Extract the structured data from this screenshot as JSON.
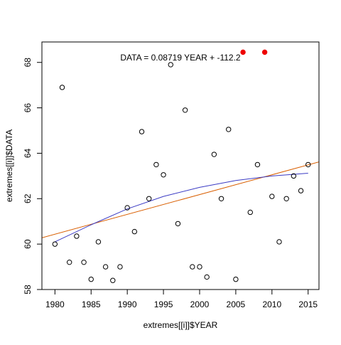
{
  "chart_data": {
    "type": "scatter",
    "title": "",
    "xlabel": "extremes[[i]]$YEAR",
    "ylabel": "extremes[[i]]$DATA",
    "xlim": [
      1978.2,
      2016.5
    ],
    "ylim": [
      58.0,
      68.9
    ],
    "x_ticks": [
      1980,
      1985,
      1990,
      1995,
      2000,
      2005,
      2010,
      2015
    ],
    "y_ticks": [
      58,
      60,
      62,
      64,
      66,
      68
    ],
    "grid": false,
    "legend": "none",
    "annotation": "DATA = 0.08719 YEAR + -112.2",
    "series": [
      {
        "style": "open-circle",
        "x": [
          1980,
          1981,
          1982,
          1983,
          1984,
          1985,
          1986,
          1987,
          1988,
          1989,
          1990,
          1991,
          1992,
          1993,
          1994,
          1995,
          1996,
          1997,
          1998,
          1999,
          2000,
          2001,
          2002,
          2003,
          2004,
          2005,
          2007,
          2008,
          2010,
          2011,
          2012,
          2013,
          2014,
          2015
        ],
        "y": [
          60.0,
          66.9,
          59.2,
          60.35,
          59.2,
          58.45,
          60.1,
          59.0,
          58.4,
          59.0,
          61.6,
          60.55,
          64.95,
          62.0,
          63.5,
          63.05,
          67.9,
          60.9,
          65.9,
          59.0,
          59.0,
          58.55,
          63.95,
          62.0,
          65.05,
          58.45,
          61.4,
          63.5,
          62.1,
          60.1,
          62.0,
          63.0,
          62.35,
          63.5
        ]
      },
      {
        "style": "filled-red",
        "x": [
          2006,
          2009
        ],
        "y": [
          68.45,
          68.45
        ]
      }
    ],
    "regression_line": {
      "slope": 0.08719,
      "intercept": -112.2,
      "color": "#d95f02"
    },
    "smooth_curve": {
      "color": "#3b3bc4",
      "x": [
        1980,
        1985,
        1990,
        1995,
        2000,
        2005,
        2010,
        2015
      ],
      "y": [
        60.1,
        60.85,
        61.55,
        62.1,
        62.5,
        62.8,
        63.0,
        63.12
      ]
    }
  }
}
